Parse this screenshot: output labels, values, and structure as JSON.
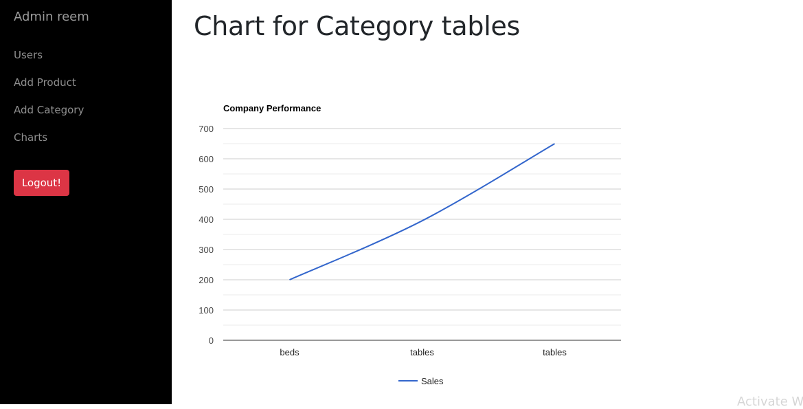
{
  "sidebar": {
    "brand": "Admin reem",
    "nav": [
      {
        "label": "Users"
      },
      {
        "label": "Add Product"
      },
      {
        "label": "Add Category"
      },
      {
        "label": "Charts"
      }
    ],
    "logout_label": "Logout!"
  },
  "main": {
    "title": "Chart for Category tables"
  },
  "watermark": "Activate W",
  "colors": {
    "sidebar_bg": "#000000",
    "logout_bg": "#dc3545",
    "series_line": "#3366cc"
  },
  "chart_data": {
    "type": "line",
    "title": "Company Performance",
    "categories": [
      "beds",
      "tables",
      "tables"
    ],
    "series": [
      {
        "name": "Sales",
        "values": [
          200,
          395,
          650
        ],
        "color": "#3366cc"
      }
    ],
    "ylim": [
      0,
      700
    ],
    "yticks": [
      0,
      100,
      200,
      300,
      400,
      500,
      600,
      700
    ],
    "grid": true,
    "legend": "bottom"
  }
}
